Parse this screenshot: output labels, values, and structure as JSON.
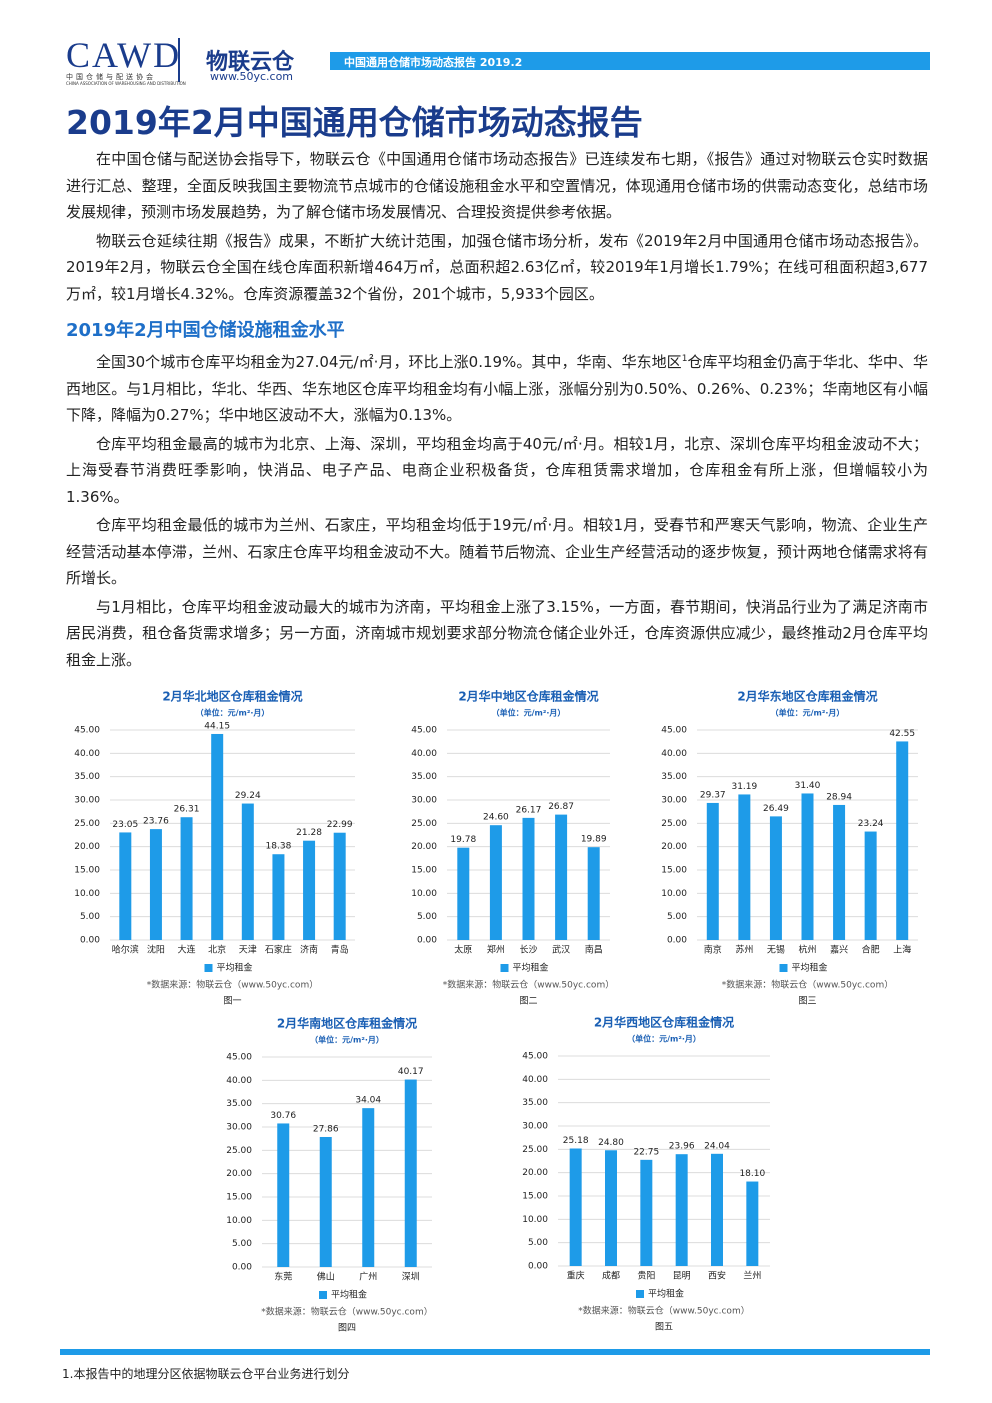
{
  "header": {
    "logo": "CAWD",
    "association": "中国仓储与配送协会",
    "association_en": "CHINA ASSOCIATION OF WAREHOUSING AND DISTRIBUTION",
    "brand": "物联云仓",
    "website": "www.50yc.com",
    "report": "中国通用仓储市场动态报告 2019.2"
  },
  "title": "2019年2月中国通用仓储市场动态报告",
  "intro": [
    "在中国仓储与配送协会指导下，物联云仓《中国通用仓储市场动态报告》已连续发布七期，《报告》通过对物联云仓实时数据进行汇总、整理，全面反映我国主要物流节点城市的仓储设施租金水平和空置情况，体现通用仓储市场的供需动态变化，总结市场发展规律，预测市场发展趋势，为了解仓储市场发展情况、合理投资提供参考依据。",
    "物联云仓延续往期《报告》成果，不断扩大统计范围，加强仓储市场分析，发布《2019年2月中国通用仓储市场动态报告》。2019年2月，物联云仓全国在线仓库面积新增464万㎡，总面积超2.63亿㎡，较2019年1月增长1.79%；在线可租面积超3,677万㎡，较1月增长4.32%。仓库资源覆盖32个省份，201个城市，5,933个园区。"
  ],
  "section": {
    "heading": "2019年2月中国仓储设施租金水平",
    "paragraph_1": {
      "before": "全国30个城市仓库平均租金为27.04元/㎡·月，环比上涨0.19%。其中，华南、华东地区",
      "mark": "1",
      "after": "仓库平均租金仍高于华北、华中、华西地区。与1月相比，华北、华西、华东地区仓库平均租金均有小幅上涨，涨幅分别为0.50%、0.26%、0.23%；华南地区有小幅下降，降幅为0.27%；华中地区波动不大，涨幅为0.13%。"
    },
    "paragraphs": [
      "仓库平均租金最高的城市为北京、上海、深圳，平均租金均高于40元/㎡·月。相较1月，北京、深圳仓库平均租金波动不大；上海受春节消费旺季影响，快消品、电子产品、电商企业积极备货，仓库租赁需求增加，仓库租金有所上涨，但增幅较小为1.36%。",
      "仓库平均租金最低的城市为兰州、石家庄，平均租金均低于19元/㎡·月。相较1月，受春节和严寒天气影响，物流、企业生产经营活动基本停滞，兰州、石家庄仓库平均租金波动不大。随着节后物流、企业生产经营活动的逐步恢复，预计两地仓储需求将有所增长。",
      "与1月相比，仓库平均租金波动最大的城市为济南，平均租金上涨了3.15%，一方面，春节期间，快消品行业为了满足济南市居民消费，租仓备货需求增多；另一方面，济南城市规划要求部分物流仓储企业外迁，仓库资源供应减少，最终推动2月仓库平均租金上涨。"
    ]
  },
  "chart_data": [
    {
      "type": "bar",
      "title": "2月华北地区仓库租金情况",
      "subtitle": "（单位：元/m²·月）",
      "categories": [
        "哈尔滨",
        "沈阳",
        "大连",
        "北京",
        "天津",
        "石家庄",
        "济南",
        "青岛"
      ],
      "series": [
        {
          "name": "平均租金",
          "color": "#1e9be8",
          "values": [
            23.05,
            23.76,
            26.31,
            44.15,
            29.24,
            18.38,
            21.28,
            22.99
          ],
          "value_labels": [
            "23.05",
            "23.76",
            "26.31",
            "44.15",
            "29.24",
            "18.38",
            "21.28",
            "22.99"
          ]
        }
      ],
      "ylim": [
        0,
        45
      ],
      "yticks": [
        {
          "value": 0,
          "label": "0.00"
        },
        {
          "value": 5,
          "label": "5.00"
        },
        {
          "value": 10,
          "label": "10.00"
        },
        {
          "value": 15,
          "label": "15.00"
        },
        {
          "value": 20,
          "label": "20.00"
        },
        {
          "value": 25,
          "label": "25.00"
        },
        {
          "value": 30,
          "label": "30.00"
        },
        {
          "value": 35,
          "label": "35.00"
        },
        {
          "value": 40,
          "label": "40.00"
        },
        {
          "value": 45,
          "label": "45.00"
        }
      ],
      "grid": true,
      "legend": "bottom",
      "source": "*数据来源：物联云仓（www.50yc.com）",
      "caption": "图一"
    },
    {
      "type": "bar",
      "title": "2月华中地区仓库租金情况",
      "subtitle": "（单位：元/m²·月）",
      "categories": [
        "太原",
        "郑州",
        "长沙",
        "武汉",
        "南昌"
      ],
      "series": [
        {
          "name": "平均租金",
          "color": "#1e9be8",
          "values": [
            19.78,
            24.6,
            26.17,
            26.87,
            19.89
          ],
          "value_labels": [
            "19.78",
            "24.60",
            "26.17",
            "26.87",
            "19.89"
          ]
        }
      ],
      "ylim": [
        0,
        45
      ],
      "yticks": [
        {
          "value": 0,
          "label": "0.00"
        },
        {
          "value": 5,
          "label": "5.00"
        },
        {
          "value": 10,
          "label": "10.00"
        },
        {
          "value": 15,
          "label": "15.00"
        },
        {
          "value": 20,
          "label": "20.00"
        },
        {
          "value": 25,
          "label": "25.00"
        },
        {
          "value": 30,
          "label": "30.00"
        },
        {
          "value": 35,
          "label": "35.00"
        },
        {
          "value": 40,
          "label": "40.00"
        },
        {
          "value": 45,
          "label": "45.00"
        }
      ],
      "grid": true,
      "legend": "bottom",
      "source": "*数据来源：物联云仓（www.50yc.com）",
      "caption": "图二"
    },
    {
      "type": "bar",
      "title": "2月华东地区仓库租金情况",
      "subtitle": "（单位：元/m²·月）",
      "categories": [
        "南京",
        "苏州",
        "无锡",
        "杭州",
        "嘉兴",
        "合肥",
        "上海"
      ],
      "series": [
        {
          "name": "平均租金",
          "color": "#1e9be8",
          "values": [
            29.37,
            31.19,
            26.49,
            31.4,
            28.94,
            23.24,
            42.55
          ],
          "value_labels": [
            "29.37",
            "31.19",
            "26.49",
            "31.40",
            "28.94",
            "23.24",
            "42.55"
          ]
        }
      ],
      "ylim": [
        0,
        45
      ],
      "yticks": [
        {
          "value": 0,
          "label": "0.00"
        },
        {
          "value": 5,
          "label": "5.00"
        },
        {
          "value": 10,
          "label": "10.00"
        },
        {
          "value": 15,
          "label": "15.00"
        },
        {
          "value": 20,
          "label": "20.00"
        },
        {
          "value": 25,
          "label": "25.00"
        },
        {
          "value": 30,
          "label": "30.00"
        },
        {
          "value": 35,
          "label": "35.00"
        },
        {
          "value": 40,
          "label": "40.00"
        },
        {
          "value": 45,
          "label": "45.00"
        }
      ],
      "grid": true,
      "legend": "bottom",
      "source": "*数据来源：物联云仓（www.50yc.com）",
      "caption": "图三"
    },
    {
      "type": "bar",
      "title": "2月华南地区仓库租金情况",
      "subtitle": "（单位：元/m²·月）",
      "categories": [
        "东莞",
        "佛山",
        "广州",
        "深圳"
      ],
      "series": [
        {
          "name": "平均租金",
          "color": "#1e9be8",
          "values": [
            30.76,
            27.86,
            34.04,
            40.17
          ],
          "value_labels": [
            "30.76",
            "27.86",
            "34.04",
            "40.17"
          ]
        }
      ],
      "ylim": [
        0,
        45
      ],
      "yticks": [
        {
          "value": 0,
          "label": "0.00"
        },
        {
          "value": 5,
          "label": "5.00"
        },
        {
          "value": 10,
          "label": "10.00"
        },
        {
          "value": 15,
          "label": "15.00"
        },
        {
          "value": 20,
          "label": "20.00"
        },
        {
          "value": 25,
          "label": "25.00"
        },
        {
          "value": 30,
          "label": "30.00"
        },
        {
          "value": 35,
          "label": "35.00"
        },
        {
          "value": 40,
          "label": "40.00"
        },
        {
          "value": 45,
          "label": "45.00"
        }
      ],
      "grid": true,
      "legend": "bottom",
      "source": "*数据来源：物联云仓（www.50yc.com）",
      "caption": "图四"
    },
    {
      "type": "bar",
      "title": "2月华西地区仓库租金情况",
      "subtitle": "（单位：元/m²·月）",
      "categories": [
        "重庆",
        "成都",
        "贵阳",
        "昆明",
        "西安",
        "兰州"
      ],
      "series": [
        {
          "name": "平均租金",
          "color": "#1e9be8",
          "values": [
            25.18,
            24.8,
            22.75,
            23.96,
            24.04,
            18.1
          ],
          "value_labels": [
            "25.18",
            "24.80",
            "22.75",
            "23.96",
            "24.04",
            "18.10"
          ]
        }
      ],
      "ylim": [
        0,
        45
      ],
      "yticks": [
        {
          "value": 0,
          "label": "0.00"
        },
        {
          "value": 5,
          "label": "5.00"
        },
        {
          "value": 10,
          "label": "10.00"
        },
        {
          "value": 15,
          "label": "15.00"
        },
        {
          "value": 20,
          "label": "20.00"
        },
        {
          "value": 25,
          "label": "25.00"
        },
        {
          "value": 30,
          "label": "30.00"
        },
        {
          "value": 35,
          "label": "35.00"
        },
        {
          "value": 40,
          "label": "40.00"
        },
        {
          "value": 45,
          "label": "45.00"
        }
      ],
      "grid": true,
      "legend": "bottom",
      "source": "*数据来源：物联云仓（www.50yc.com）",
      "caption": "图五"
    }
  ],
  "footnote": "1.本报告中的地理分区依据物联云仓平台业务进行划分"
}
